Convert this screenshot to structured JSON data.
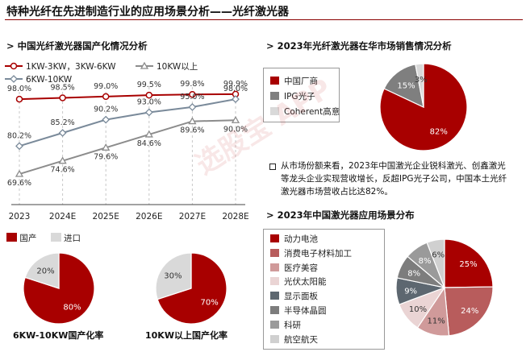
{
  "header": {
    "title": "特种光纤在先进制造行业的应用场景分析——光纤激光器"
  },
  "sections": {
    "localization": "中国光纤激光器国产化情况分析",
    "market": "2023年光纤激光器在华市场销售情况分析",
    "applications": "2023年中国激光器应用场景分布"
  },
  "watermark": "选股宝 APP",
  "market_text": "从市场份额来看，2023年中国激光企业锐科激光、创鑫激光等龙头企业实现营收增长，反超IPG光子公司，中国本土光纤激光器市场营收占比达82%。",
  "bullet_icon": "square-bullet-icon",
  "colors": {
    "red": "#a80000",
    "gray": "#d9d9d9",
    "line_gray": "#7f7f7f",
    "dark": "#5a5a5a"
  },
  "chart_data": [
    {
      "type": "line",
      "x": [
        "2023",
        "2024E",
        "2025E",
        "2026E",
        "2027E",
        "2028E"
      ],
      "series": [
        {
          "name": "1KW-3KW，3KW-6KW",
          "values": [
            98.0,
            98.5,
            99.0,
            99.5,
            99.8,
            99.9
          ],
          "labels": [
            "98.0%",
            "98.5%",
            "99.0%",
            "99.5%",
            "99.8%",
            "99.9%"
          ],
          "color": "#a80000",
          "marker": "circle"
        },
        {
          "name": "10KW以上",
          "values": [
            69.6,
            74.6,
            79.6,
            84.6,
            89.6,
            90.0
          ],
          "labels": [
            "69.6%",
            "74.6%",
            "79.6%",
            "84.6%",
            "89.6%",
            "90.0%"
          ],
          "color": "#8c8c8c",
          "marker": "triangle"
        },
        {
          "name": "6KW-10KW",
          "values": [
            80.2,
            85.2,
            90.2,
            93.0,
            95.0,
            98.0
          ],
          "labels": [
            "80.2%",
            "85.2%",
            "90.2%",
            "93.0%",
            "95.0%",
            "98.0%"
          ],
          "color": "#7a8a9a",
          "marker": "diamond"
        }
      ],
      "grid": true
    },
    {
      "type": "pie",
      "title": "6KW-10KW国产化率",
      "slices": [
        {
          "name": "国产",
          "value": 80,
          "label": "80%",
          "color": "#a80000"
        },
        {
          "name": "进口",
          "value": 20,
          "label": "20%",
          "color": "#d9d9d9"
        }
      ]
    },
    {
      "type": "pie",
      "title": "10KW以上国产化率",
      "slices": [
        {
          "name": "国产",
          "value": 70,
          "label": "70%",
          "color": "#a80000"
        },
        {
          "name": "进口",
          "value": 30,
          "label": "30%",
          "color": "#d9d9d9"
        }
      ]
    },
    {
      "type": "pie",
      "slices": [
        {
          "name": "中国厂商",
          "value": 82,
          "label": "82%",
          "color": "#a80000"
        },
        {
          "name": "IPG光子",
          "value": 15,
          "label": "15%",
          "color": "#7f7f7f"
        },
        {
          "name": "Coherent高意",
          "value": 3,
          "label": "3%",
          "color": "#d9d9d9"
        }
      ]
    },
    {
      "type": "pie",
      "slices": [
        {
          "name": "动力电池",
          "value": 25,
          "label": "25%",
          "color": "#a80000"
        },
        {
          "name": "消费电子材料加工",
          "value": 24,
          "label": "24%",
          "color": "#b85c5c"
        },
        {
          "name": "医疗美容",
          "value": 11,
          "label": "11%",
          "color": "#d09a9a"
        },
        {
          "name": "光伏太阳能",
          "value": 10,
          "label": "10%",
          "color": "#ead4d4"
        },
        {
          "name": "显示面板",
          "value": 9,
          "label": "9%",
          "color": "#5d6770"
        },
        {
          "name": "半导体晶圆",
          "value": 8,
          "label": "8%",
          "color": "#7d7d7d"
        },
        {
          "name": "科研",
          "value": 8,
          "label": "8%",
          "color": "#9a9a9a"
        },
        {
          "name": "航空航天",
          "value": 6,
          "label": "6%",
          "color": "#d0d0d0"
        }
      ]
    }
  ],
  "pie_legend": [
    "国产",
    "进口"
  ]
}
